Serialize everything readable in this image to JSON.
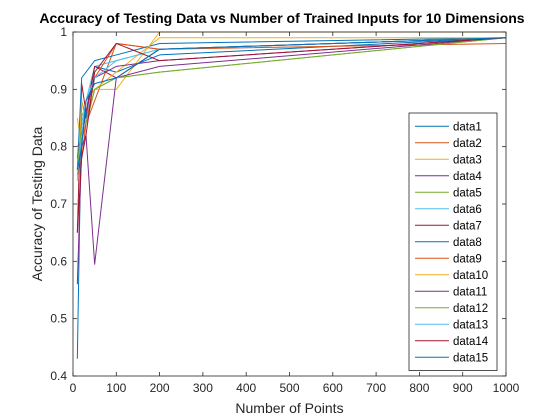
{
  "chart_data": {
    "type": "line",
    "title": "Accuracy of Testing Data vs Number of Trained Inputs for 10 Dimensions",
    "xlabel": "Number of Points",
    "ylabel": "Accuracy of Testing Data",
    "xlim": [
      0,
      1000
    ],
    "ylim": [
      0.4,
      1
    ],
    "xticks": [
      0,
      100,
      200,
      300,
      400,
      500,
      600,
      700,
      800,
      900,
      1000
    ],
    "yticks": [
      0.4,
      0.5,
      0.6,
      0.7,
      0.8,
      0.9,
      1
    ],
    "xtick_labels": [
      "0",
      "100",
      "200",
      "300",
      "400",
      "500",
      "600",
      "700",
      "800",
      "900",
      "1000"
    ],
    "ytick_labels": [
      "0.4",
      "0.5",
      "0.6",
      "0.7",
      "0.8",
      "0.9",
      "1"
    ],
    "grid": false,
    "legend_position": "right",
    "x": [
      10,
      20,
      30,
      50,
      100,
      200,
      1000
    ],
    "series": [
      {
        "name": "data1",
        "color": "#0072BD",
        "values": [
          0.43,
          0.88,
          0.85,
          0.94,
          0.93,
          0.96,
          0.99
        ]
      },
      {
        "name": "data2",
        "color": "#D95319",
        "values": [
          0.75,
          0.78,
          0.84,
          0.88,
          0.98,
          0.97,
          0.98
        ]
      },
      {
        "name": "data3",
        "color": "#EDB120",
        "values": [
          0.85,
          0.8,
          0.88,
          0.9,
          0.9,
          1.0,
          1.0
        ]
      },
      {
        "name": "data4",
        "color": "#7E2F8E",
        "values": [
          0.56,
          0.8,
          0.82,
          0.595,
          0.92,
          0.94,
          0.99
        ]
      },
      {
        "name": "data5",
        "color": "#77AC30",
        "values": [
          0.78,
          0.86,
          0.84,
          0.9,
          0.92,
          0.93,
          0.99
        ]
      },
      {
        "name": "data6",
        "color": "#4DBEEE",
        "values": [
          0.78,
          0.84,
          0.88,
          0.94,
          0.95,
          0.97,
          0.99
        ]
      },
      {
        "name": "data7",
        "color": "#A2142F",
        "values": [
          0.65,
          0.91,
          0.86,
          0.94,
          0.92,
          0.97,
          0.99
        ]
      },
      {
        "name": "data8",
        "color": "#0072BD",
        "values": [
          0.76,
          0.92,
          0.93,
          0.95,
          0.96,
          0.98,
          0.99
        ]
      },
      {
        "name": "data9",
        "color": "#D95319",
        "values": [
          0.77,
          0.81,
          0.84,
          0.92,
          0.98,
          0.97,
          0.99
        ]
      },
      {
        "name": "data10",
        "color": "#EDB120",
        "values": [
          0.74,
          0.88,
          0.84,
          0.9,
          0.93,
          0.99,
          0.99
        ]
      },
      {
        "name": "data11",
        "color": "#7E2F8E",
        "values": [
          0.8,
          0.81,
          0.86,
          0.92,
          0.94,
          0.95,
          0.99
        ]
      },
      {
        "name": "data12",
        "color": "#77AC30",
        "values": [
          0.76,
          0.84,
          0.84,
          0.9,
          0.92,
          0.93,
          0.99
        ]
      },
      {
        "name": "data13",
        "color": "#4DBEEE",
        "values": [
          0.75,
          0.82,
          0.88,
          0.92,
          0.95,
          0.97,
          0.99
        ]
      },
      {
        "name": "data14",
        "color": "#A2142F",
        "values": [
          0.65,
          0.78,
          0.82,
          0.93,
          0.98,
          0.95,
          0.99
        ]
      },
      {
        "name": "data15",
        "color": "#0072BD",
        "values": [
          0.76,
          0.8,
          0.88,
          0.91,
          0.92,
          0.97,
          0.99
        ]
      }
    ]
  }
}
